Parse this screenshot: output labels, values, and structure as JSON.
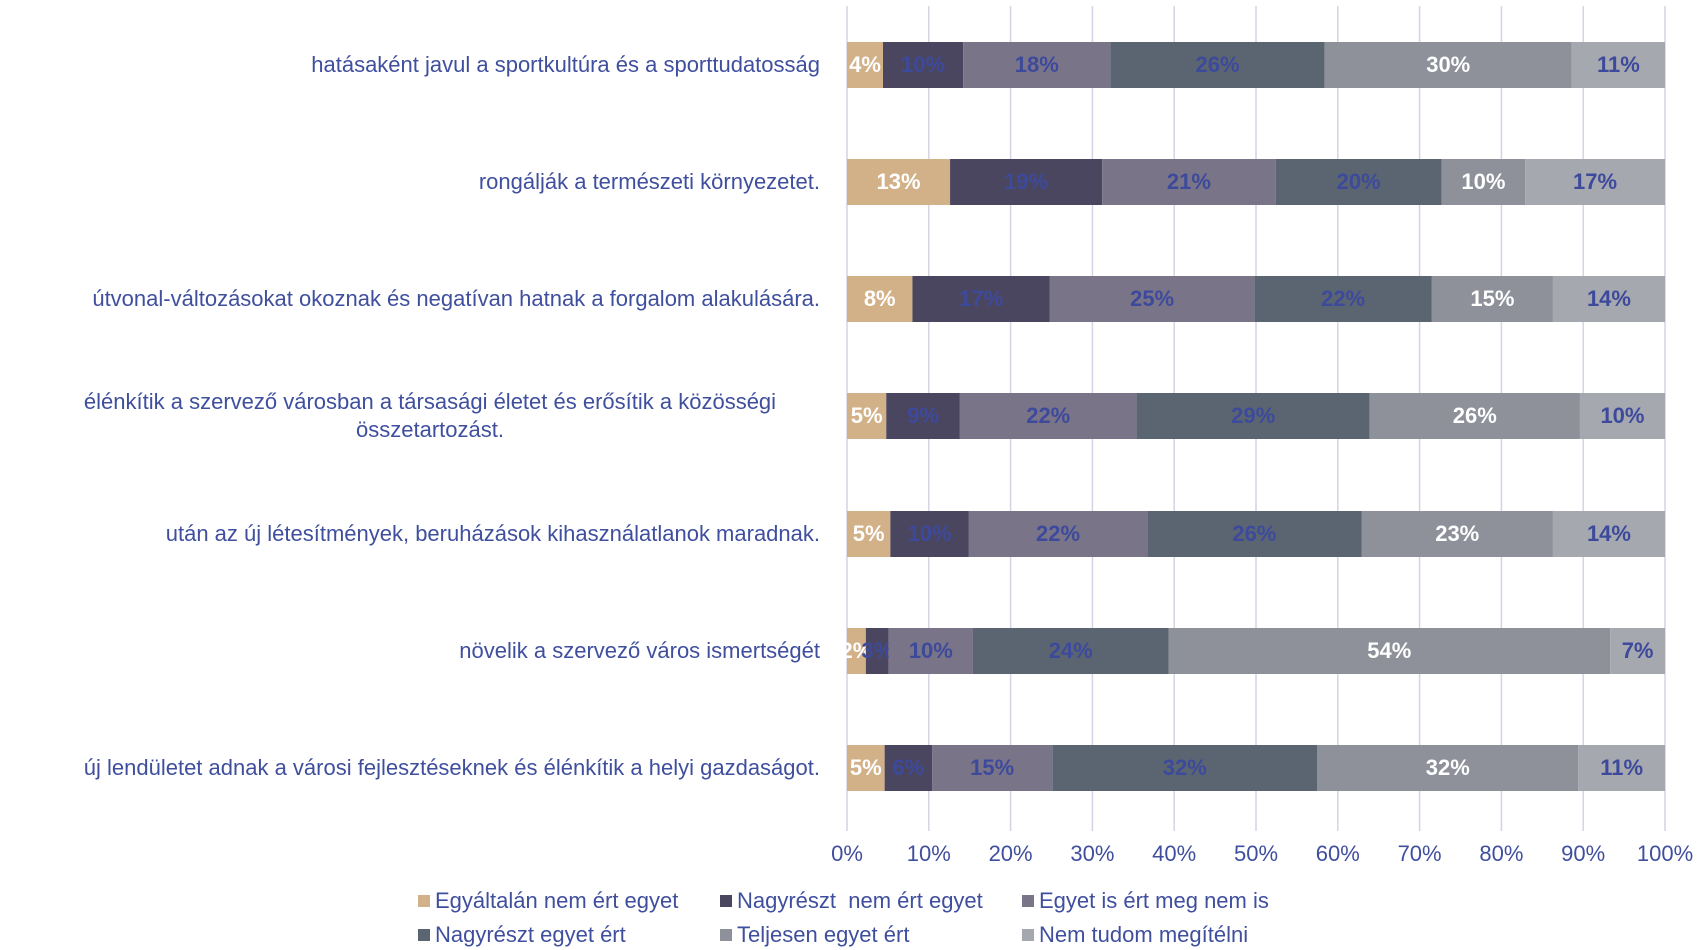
{
  "chart_data": {
    "type": "stacked-bar-horizontal",
    "categories": [
      "hatásaként javul a sportkultúra és a sporttudatosság",
      "rongálják a természeti környezetet.",
      "útvonal-változásokat okoznak és negatívan hatnak a forgalom alakulására.",
      "élénkítik a szervező városban a társasági életet és erősítik a közösségi összetartozást.",
      "után az új létesítmények, beruházások kihasználatlanok maradnak.",
      "növelik a szervező város ismertségét",
      "új lendületet adnak a városi fejlesztéseknek és élénkítik a helyi gazdaságot."
    ],
    "series": [
      {
        "name": "Egyáltalán nem ért egyet",
        "color": "#d3b188",
        "label_color": "#ffffff",
        "values": [
          4.4,
          12.6,
          8.0,
          4.8,
          5.3,
          2.3,
          4.6
        ],
        "value_labels": [
          "4%",
          "13%",
          "8%",
          "5%",
          "5%",
          "2%",
          "5%"
        ]
      },
      {
        "name": "Nagyrészt  nem ért egyet",
        "color": "#4b465f",
        "label_color": "#3d4a9c",
        "values": [
          9.8,
          18.6,
          16.8,
          9.0,
          9.6,
          2.8,
          5.8
        ],
        "value_labels": [
          "10%",
          "19%",
          "17%",
          "9%",
          "10%",
          "3%",
          "6%"
        ]
      },
      {
        "name": "Egyet is ért meg nem is",
        "color": "#7a7489",
        "label_color": "#3d4a9c",
        "values": [
          18.0,
          21.2,
          25.0,
          21.6,
          21.8,
          10.3,
          14.7
        ],
        "value_labels": [
          "18%",
          "21%",
          "25%",
          "22%",
          "22%",
          "10%",
          "15%"
        ]
      },
      {
        "name": "Nagyrészt egyet ért",
        "color": "#5a6571",
        "label_color": "#3d4a9c",
        "values": [
          26.2,
          20.3,
          21.7,
          28.5,
          26.2,
          23.9,
          32.4
        ],
        "value_labels": [
          "26%",
          "20%",
          "22%",
          "29%",
          "26%",
          "24%",
          "32%"
        ]
      },
      {
        "name": "Teljesen egyet ért",
        "color": "#8e9199",
        "label_color": "#ffffff",
        "values": [
          30.2,
          10.2,
          14.8,
          25.7,
          23.4,
          54.0,
          31.9
        ],
        "value_labels": [
          "30%",
          "10%",
          "15%",
          "26%",
          "23%",
          "54%",
          "32%"
        ]
      },
      {
        "name": "Nem tudom megítélni",
        "color": "#a6a8b0",
        "label_color": "#3d4a9c",
        "values": [
          11.4,
          17.1,
          13.7,
          10.4,
          13.7,
          6.7,
          10.6
        ],
        "value_labels": [
          "11%",
          "17%",
          "14%",
          "10%",
          "14%",
          "7%",
          "11%"
        ]
      }
    ],
    "xlim": [
      0,
      100
    ],
    "xticks": [
      {
        "value": 0,
        "label": "0%"
      },
      {
        "value": 10,
        "label": "10%"
      },
      {
        "value": 20,
        "label": "20%"
      },
      {
        "value": 30,
        "label": "30%"
      },
      {
        "value": 40,
        "label": "40%"
      },
      {
        "value": 50,
        "label": "50%"
      },
      {
        "value": 60,
        "label": "60%"
      },
      {
        "value": 70,
        "label": "70%"
      },
      {
        "value": 80,
        "label": "80%"
      },
      {
        "value": 90,
        "label": "90%"
      },
      {
        "value": 100,
        "label": "100%"
      }
    ],
    "grid": true,
    "legend": "bottom"
  }
}
